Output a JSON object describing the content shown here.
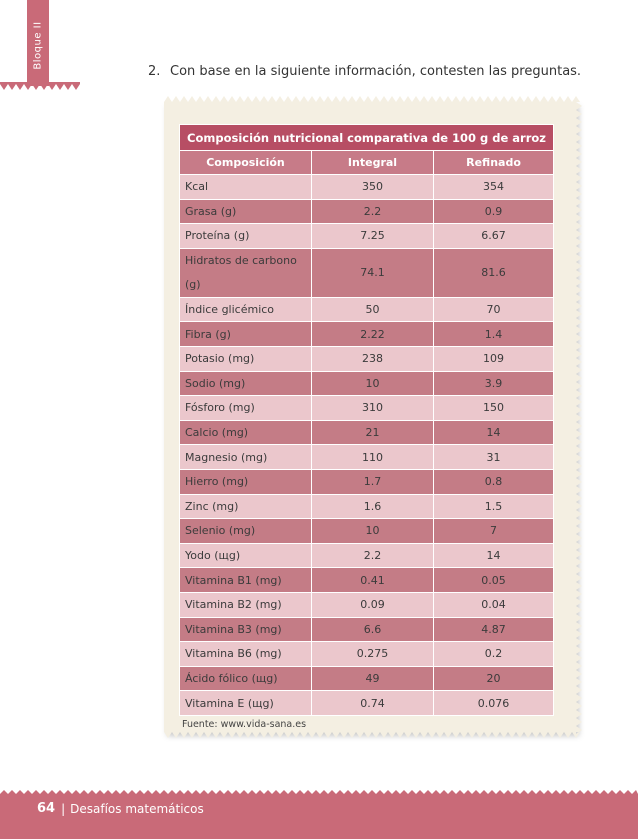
{
  "side_tab": {
    "label": "Bloque II",
    "color": "#c96a78"
  },
  "question": {
    "number": "2.",
    "text": "Con base en la siguiente información, contesten las preguntas."
  },
  "table": {
    "title": "Composición nutricional comparativa de 100 g de arroz",
    "headers": [
      "Composición",
      "Integral",
      "Refinado"
    ],
    "rows": [
      {
        "name": "Kcal",
        "integral": "350",
        "refinado": "354"
      },
      {
        "name": "Grasa (g)",
        "integral": "2.2",
        "refinado": "0.9"
      },
      {
        "name": "Proteína (g)",
        "integral": "7.25",
        "refinado": "6.67"
      },
      {
        "name": "Hidratos de carbono (g)",
        "integral": "74.1",
        "refinado": "81.6"
      },
      {
        "name": "Índice glicémico",
        "integral": "50",
        "refinado": "70"
      },
      {
        "name": "Fibra (g)",
        "integral": "2.22",
        "refinado": "1.4"
      },
      {
        "name": "Potasio (mg)",
        "integral": "238",
        "refinado": "109"
      },
      {
        "name": "Sodio (mg)",
        "integral": "10",
        "refinado": "3.9"
      },
      {
        "name": "Fósforo (mg)",
        "integral": "310",
        "refinado": "150"
      },
      {
        "name": "Calcio (mg)",
        "integral": "21",
        "refinado": "14"
      },
      {
        "name": "Magnesio (mg)",
        "integral": "110",
        "refinado": "31"
      },
      {
        "name": "Hierro (mg)",
        "integral": "1.7",
        "refinado": "0.8"
      },
      {
        "name": "Zinc (mg)",
        "integral": "1.6",
        "refinado": "1.5"
      },
      {
        "name": "Selenio (mg)",
        "integral": "10",
        "refinado": "7"
      },
      {
        "name": "Yodo (щg)",
        "integral": "2.2",
        "refinado": "14"
      },
      {
        "name": "Vitamina B1 (mg)",
        "integral": "0.41",
        "refinado": "0.05"
      },
      {
        "name": "Vitamina B2 (mg)",
        "integral": "0.09",
        "refinado": "0.04"
      },
      {
        "name": "Vitamina B3 (mg)",
        "integral": "6.6",
        "refinado": "4.87"
      },
      {
        "name": "Vitamina B6 (mg)",
        "integral": "0.275",
        "refinado": "0.2"
      },
      {
        "name": "Ácido fólico (щg)",
        "integral": "49",
        "refinado": "20"
      },
      {
        "name": "Vitamina E (щg)",
        "integral": "0.74",
        "refinado": "0.076"
      }
    ],
    "source": "Fuente: www.vida-sana.es"
  },
  "footer": {
    "page_number": "64",
    "separator": "|",
    "book_title": "Desafíos matemáticos"
  },
  "colors": {
    "brand": "#c96a78",
    "title_row": "#b74e64",
    "header_row": "#c77b88",
    "row_light": "#ebc7cc",
    "row_dark": "#c47c86",
    "paper": "#f4efe2"
  }
}
